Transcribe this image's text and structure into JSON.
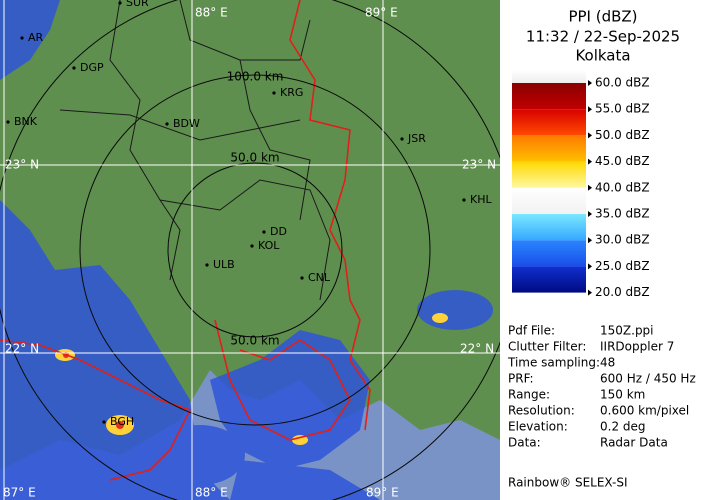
{
  "header": {
    "title": "PPI (dBZ)",
    "datetime": "11:32 / 22-Sep-2025",
    "station": "Kolkata"
  },
  "legend": {
    "labels": [
      "60.0 dBZ",
      "55.0 dBZ",
      "50.0 dBZ",
      "45.0 dBZ",
      "40.0 dBZ",
      "35.0 dBZ",
      "30.0 dBZ",
      "25.0 dBZ",
      "20.0 dBZ"
    ],
    "colors": [
      [
        "#ffffff",
        "#eeeeee"
      ],
      [
        "#8a0000",
        "#c00000"
      ],
      [
        "#d80000",
        "#ff4a00"
      ],
      [
        "#ff7a00",
        "#ffc000"
      ],
      [
        "#ffd800",
        "#fff8a0"
      ],
      [
        "#ffffff",
        "#f2f2f2"
      ],
      [
        "#7ae8ff",
        "#36a8ff"
      ],
      [
        "#2a86ff",
        "#1a4ee8"
      ],
      [
        "#1030d0",
        "#000a80"
      ]
    ]
  },
  "info": [
    [
      "Pdf File:",
      "150Z.ppi"
    ],
    [
      "Clutter Filter:",
      "IIRDoppler 7"
    ],
    [
      "Time sampling:",
      "48"
    ],
    [
      "PRF:",
      "600 Hz / 450 Hz"
    ],
    [
      "Range:",
      "150 km"
    ],
    [
      "Resolution:",
      "0.600 km/pixel"
    ],
    [
      "Elevation:",
      "0.2 deg"
    ],
    [
      "Data:",
      "Radar Data"
    ]
  ],
  "footer": "Rainbow® SELEX-SI",
  "map": {
    "places": [
      "SUR",
      "AR",
      "DGP",
      "BNK",
      "BDW",
      "KRG",
      "JSR",
      "KHL",
      "DD",
      "KOL",
      "ULB",
      "CNL",
      "BGH"
    ],
    "grid_labels": [
      "88° E",
      "89° E",
      "23° N",
      "23° N",
      "22° N",
      "22° N",
      "87° E",
      "88° E",
      "89° E"
    ],
    "range_labels": [
      "100.0 km",
      "50.0 km",
      "50.0 km"
    ]
  }
}
